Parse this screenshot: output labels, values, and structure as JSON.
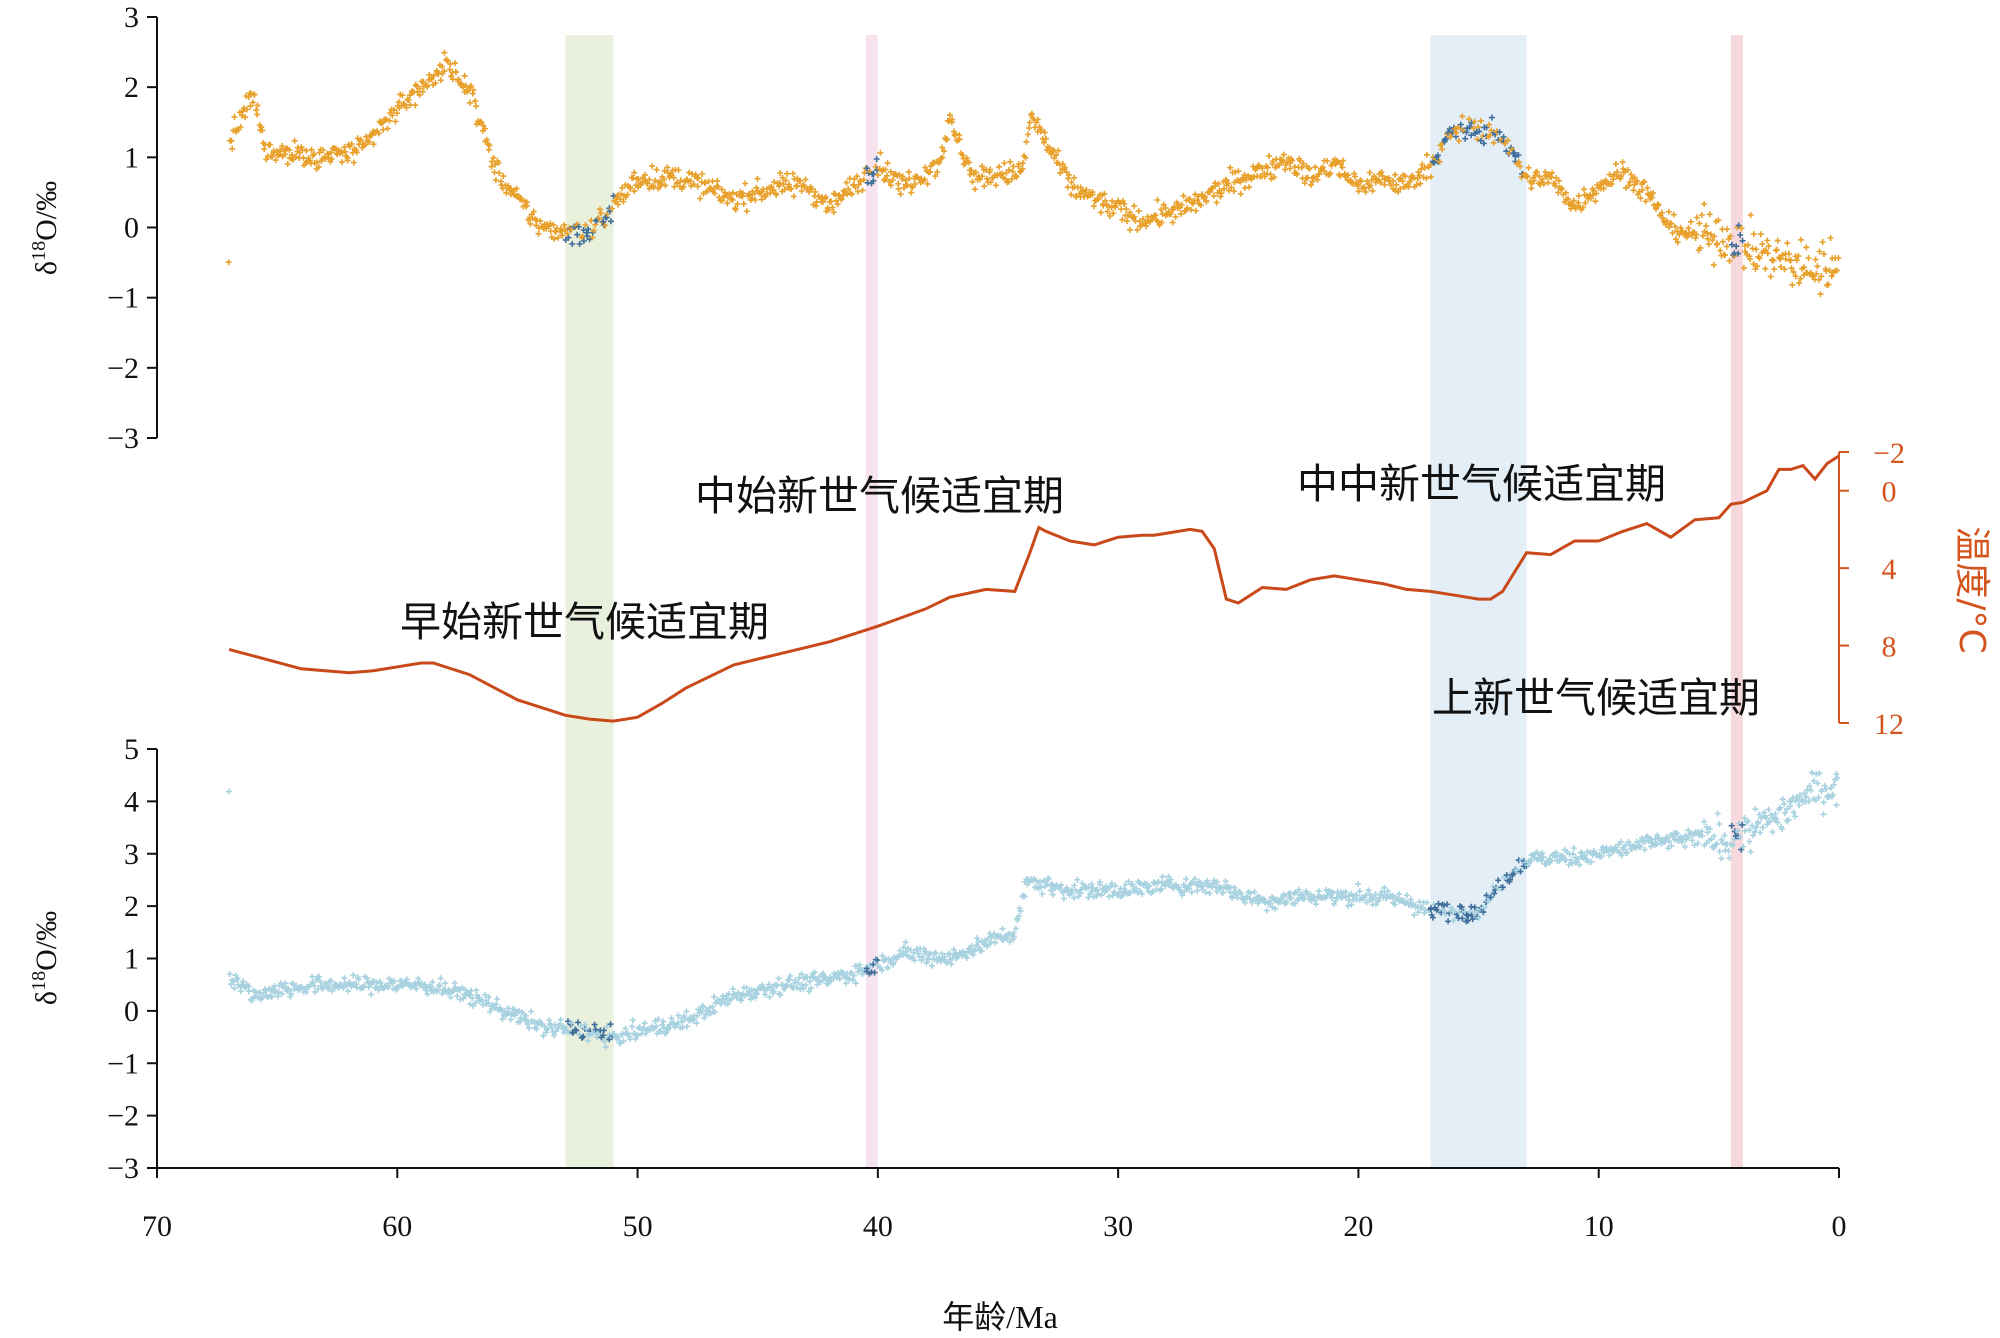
{
  "colors": {
    "top_series": "#e8a02a",
    "bottom_series": "#a8d2e0",
    "dark_points": "#3f6f9a",
    "temperature": "#c9491a",
    "band_green": "#e9f0dc",
    "band_pink": "#f6e3ee",
    "band_blue": "#e3eef6",
    "band_red": "#f6d9dc"
  },
  "chart_data": [
    {
      "type": "scatter",
      "panel": "top",
      "ylabel": "δ18O/‰",
      "ylim": [
        -3,
        3
      ],
      "xlim": [
        70,
        0
      ],
      "yticks": [
        3,
        2,
        1,
        0,
        -1,
        -2,
        -3
      ],
      "ytick_labels": [
        "3",
        "2",
        "1",
        "0",
        "−1",
        "−2",
        "−3"
      ],
      "series": [
        {
          "trend": [
            [
              67,
              1.2
            ],
            [
              66,
              1.9
            ],
            [
              65.5,
              1.1
            ],
            [
              63,
              1.0
            ],
            [
              61.5,
              1.1
            ],
            [
              60,
              1.7
            ],
            [
              58,
              2.3
            ],
            [
              57,
              2.0
            ],
            [
              56,
              0.9
            ],
            [
              55.5,
              0.6
            ],
            [
              54,
              0.0
            ],
            [
              52,
              -0.1
            ],
            [
              51,
              0.3
            ],
            [
              50,
              0.7
            ],
            [
              48,
              0.7
            ],
            [
              46,
              0.4
            ],
            [
              44,
              0.6
            ],
            [
              43,
              0.6
            ],
            [
              42,
              0.3
            ],
            [
              40,
              0.9
            ],
            [
              39,
              0.6
            ],
            [
              37.5,
              0.9
            ],
            [
              37,
              1.5
            ],
            [
              36,
              0.7
            ],
            [
              34,
              0.8
            ],
            [
              33.6,
              1.6
            ],
            [
              33,
              1.2
            ],
            [
              32,
              0.6
            ],
            [
              31,
              0.4
            ],
            [
              29,
              0.1
            ],
            [
              27,
              0.3
            ],
            [
              25.5,
              0.6
            ],
            [
              24,
              0.8
            ],
            [
              23,
              1.0
            ],
            [
              22,
              0.7
            ],
            [
              21,
              0.9
            ],
            [
              20,
              0.6
            ],
            [
              19,
              0.7
            ],
            [
              18,
              0.6
            ],
            [
              17,
              0.9
            ],
            [
              16,
              1.4
            ],
            [
              15,
              1.4
            ],
            [
              14,
              1.3
            ],
            [
              13,
              0.7
            ],
            [
              12,
              0.7
            ],
            [
              11,
              0.3
            ],
            [
              10,
              0.6
            ],
            [
              9,
              0.8
            ],
            [
              8,
              0.5
            ],
            [
              7,
              0.0
            ],
            [
              6,
              -0.1
            ],
            [
              5,
              -0.1
            ],
            [
              4,
              -0.3
            ],
            [
              3,
              -0.4
            ],
            [
              2,
              -0.5
            ],
            [
              1,
              -0.6
            ],
            [
              0,
              -0.5
            ]
          ]
        }
      ]
    },
    {
      "type": "line",
      "panel": "middle",
      "ylabel": "温度/°C",
      "ylim": [
        12,
        -2
      ],
      "yticks": [
        -2,
        0,
        4,
        8,
        12
      ],
      "ytick_labels": [
        "−2",
        "0",
        "4",
        "8",
        "12"
      ],
      "series": [
        {
          "x": [
            67,
            64,
            62,
            61,
            59,
            58.5,
            57,
            55,
            53,
            52,
            51,
            50,
            49,
            48,
            46,
            44,
            42,
            40,
            38,
            37,
            35.5,
            34.3,
            33.7,
            33.3,
            33,
            32,
            31,
            30,
            29,
            28.5,
            27,
            26.5,
            26,
            25.5,
            25,
            24.5,
            24,
            23,
            22,
            21,
            20,
            19,
            18,
            17,
            16,
            15,
            14.5,
            14,
            13.5,
            13,
            12,
            11,
            10,
            9,
            8,
            7,
            6,
            5,
            4.5,
            4,
            3,
            2.5,
            2,
            1.5,
            1,
            0.5,
            0
          ],
          "y": [
            8.2,
            9.2,
            9.4,
            9.3,
            8.9,
            8.9,
            9.5,
            10.8,
            11.6,
            11.8,
            11.9,
            11.7,
            11.0,
            10.2,
            9.0,
            8.4,
            7.8,
            7.0,
            6.1,
            5.5,
            5.1,
            5.2,
            3.3,
            1.9,
            2.1,
            2.6,
            2.8,
            2.4,
            2.3,
            2.3,
            2.0,
            2.1,
            3.0,
            5.6,
            5.8,
            5.4,
            5.0,
            5.1,
            4.6,
            4.4,
            4.6,
            4.8,
            5.1,
            5.2,
            5.4,
            5.6,
            5.6,
            5.2,
            4.2,
            3.2,
            3.3,
            2.6,
            2.6,
            2.1,
            1.7,
            2.4,
            1.5,
            1.4,
            0.7,
            0.6,
            0.0,
            -1.1,
            -1.1,
            -1.3,
            -0.6,
            -1.4,
            -1.8
          ]
        }
      ]
    },
    {
      "type": "scatter",
      "panel": "bottom",
      "ylabel": "δ18O/‰",
      "ylim": [
        -3,
        5
      ],
      "xlim": [
        70,
        0
      ],
      "yticks": [
        5,
        4,
        3,
        2,
        1,
        0,
        -1,
        -2,
        -3
      ],
      "ytick_labels": [
        "5",
        "4",
        "3",
        "2",
        "1",
        "0",
        "−1",
        "−2",
        "−3"
      ],
      "xticks": [
        70,
        60,
        50,
        40,
        30,
        20,
        10,
        0
      ],
      "xtick_labels": [
        "70",
        "60",
        "50",
        "40",
        "30",
        "20",
        "10",
        "0"
      ],
      "xlabel": "年龄/Ma",
      "series": [
        {
          "trend": [
            [
              67,
              0.7
            ],
            [
              66,
              0.3
            ],
            [
              65,
              0.4
            ],
            [
              63,
              0.5
            ],
            [
              61,
              0.5
            ],
            [
              59,
              0.5
            ],
            [
              57,
              0.3
            ],
            [
              56,
              0.1
            ],
            [
              54,
              -0.3
            ],
            [
              52,
              -0.4
            ],
            [
              51,
              -0.5
            ],
            [
              50,
              -0.4
            ],
            [
              48,
              -0.2
            ],
            [
              46,
              0.3
            ],
            [
              44,
              0.5
            ],
            [
              42,
              0.6
            ],
            [
              40.5,
              0.8
            ],
            [
              39,
              1.1
            ],
            [
              37,
              1.0
            ],
            [
              35,
              1.4
            ],
            [
              34.3,
              1.5
            ],
            [
              33.8,
              2.5
            ],
            [
              32,
              2.3
            ],
            [
              30,
              2.3
            ],
            [
              28,
              2.4
            ],
            [
              26,
              2.4
            ],
            [
              24,
              2.1
            ],
            [
              22,
              2.2
            ],
            [
              20,
              2.2
            ],
            [
              18,
              2.1
            ],
            [
              17,
              1.9
            ],
            [
              15,
              1.9
            ],
            [
              14,
              2.5
            ],
            [
              13,
              2.9
            ],
            [
              12,
              2.9
            ],
            [
              10,
              3.0
            ],
            [
              8,
              3.2
            ],
            [
              6,
              3.3
            ],
            [
              4.5,
              3.3
            ],
            [
              3,
              3.6
            ],
            [
              2,
              3.9
            ],
            [
              1,
              4.2
            ],
            [
              0,
              4.3
            ]
          ]
        }
      ]
    }
  ],
  "bands": [
    {
      "x0": 53,
      "x1": 51,
      "color": "band_green"
    },
    {
      "x0": 40.5,
      "x1": 40,
      "color": "band_pink"
    },
    {
      "x0": 17,
      "x1": 13,
      "color": "band_blue"
    },
    {
      "x0": 4.5,
      "x1": 4,
      "color": "band_red"
    }
  ],
  "annotations": {
    "eeco": "早始新世气候适宜期",
    "meco": "中始新世气候适宜期",
    "mmco": "中中新世气候适宜期",
    "pliocene": "上新世气候适宜期"
  }
}
